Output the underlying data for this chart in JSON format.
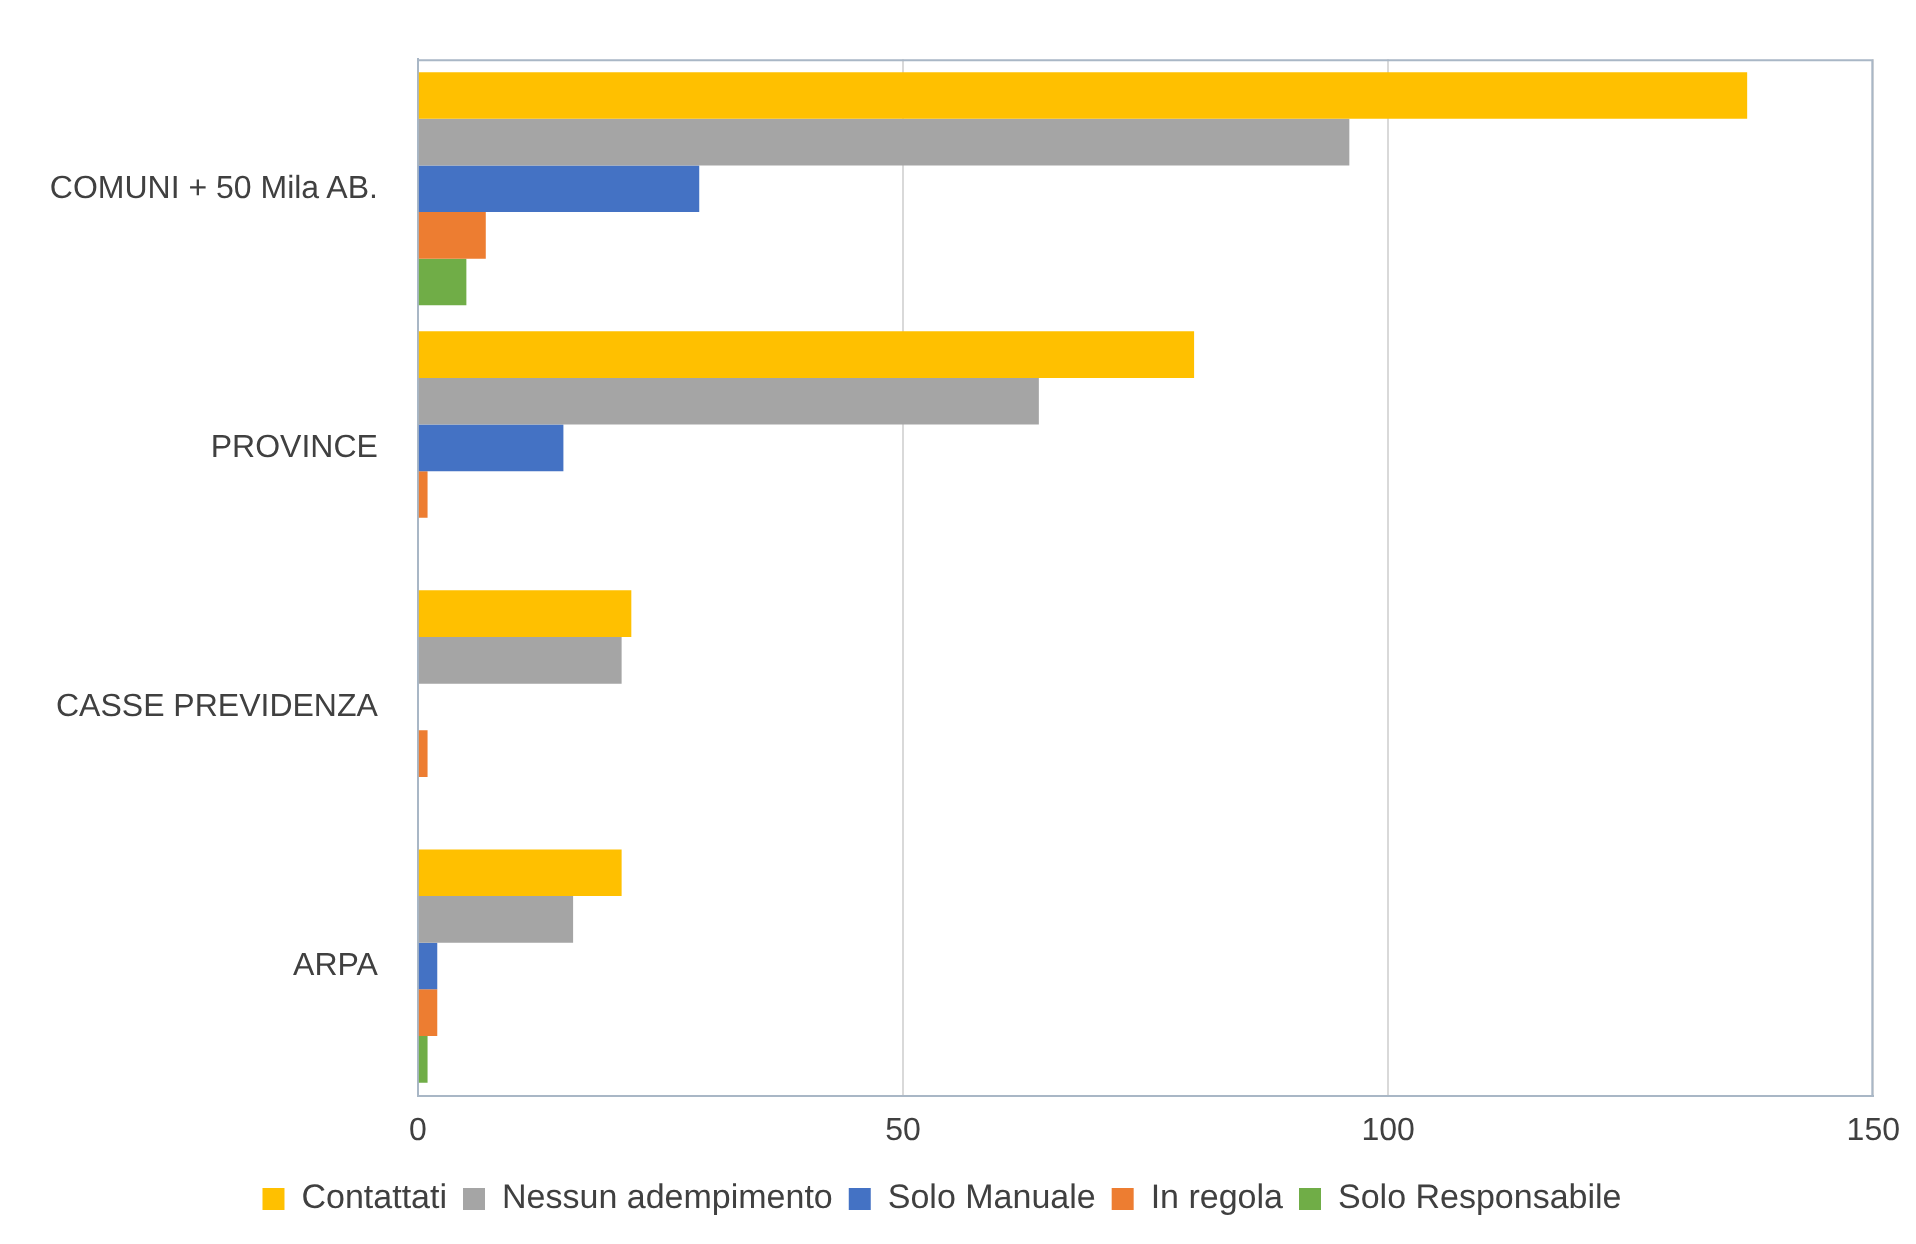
{
  "chart_data": {
    "type": "bar",
    "orientation": "horizontal",
    "categories": [
      "COMUNI + 50 Mila AB.",
      "PROVINCE",
      "CASSE PREVIDENZA",
      "ARPA"
    ],
    "series": [
      {
        "name": "Contattati",
        "color": "#ffc000",
        "values": [
          137,
          80,
          22,
          21
        ]
      },
      {
        "name": "Nessun adempimento",
        "color": "#a5a5a5",
        "values": [
          96,
          64,
          21,
          16
        ]
      },
      {
        "name": "Solo Manuale",
        "color": "#4472c4",
        "values": [
          29,
          15,
          0,
          2
        ]
      },
      {
        "name": "In regola",
        "color": "#ed7d31",
        "values": [
          7,
          1,
          1,
          2
        ]
      },
      {
        "name": "Solo Responsabile",
        "color": "#70ad47",
        "values": [
          5,
          0,
          0,
          1
        ]
      }
    ],
    "xlim": [
      0,
      150
    ],
    "xticks": [
      0,
      50,
      100,
      150
    ],
    "grid": "x",
    "legend": "bottom"
  }
}
